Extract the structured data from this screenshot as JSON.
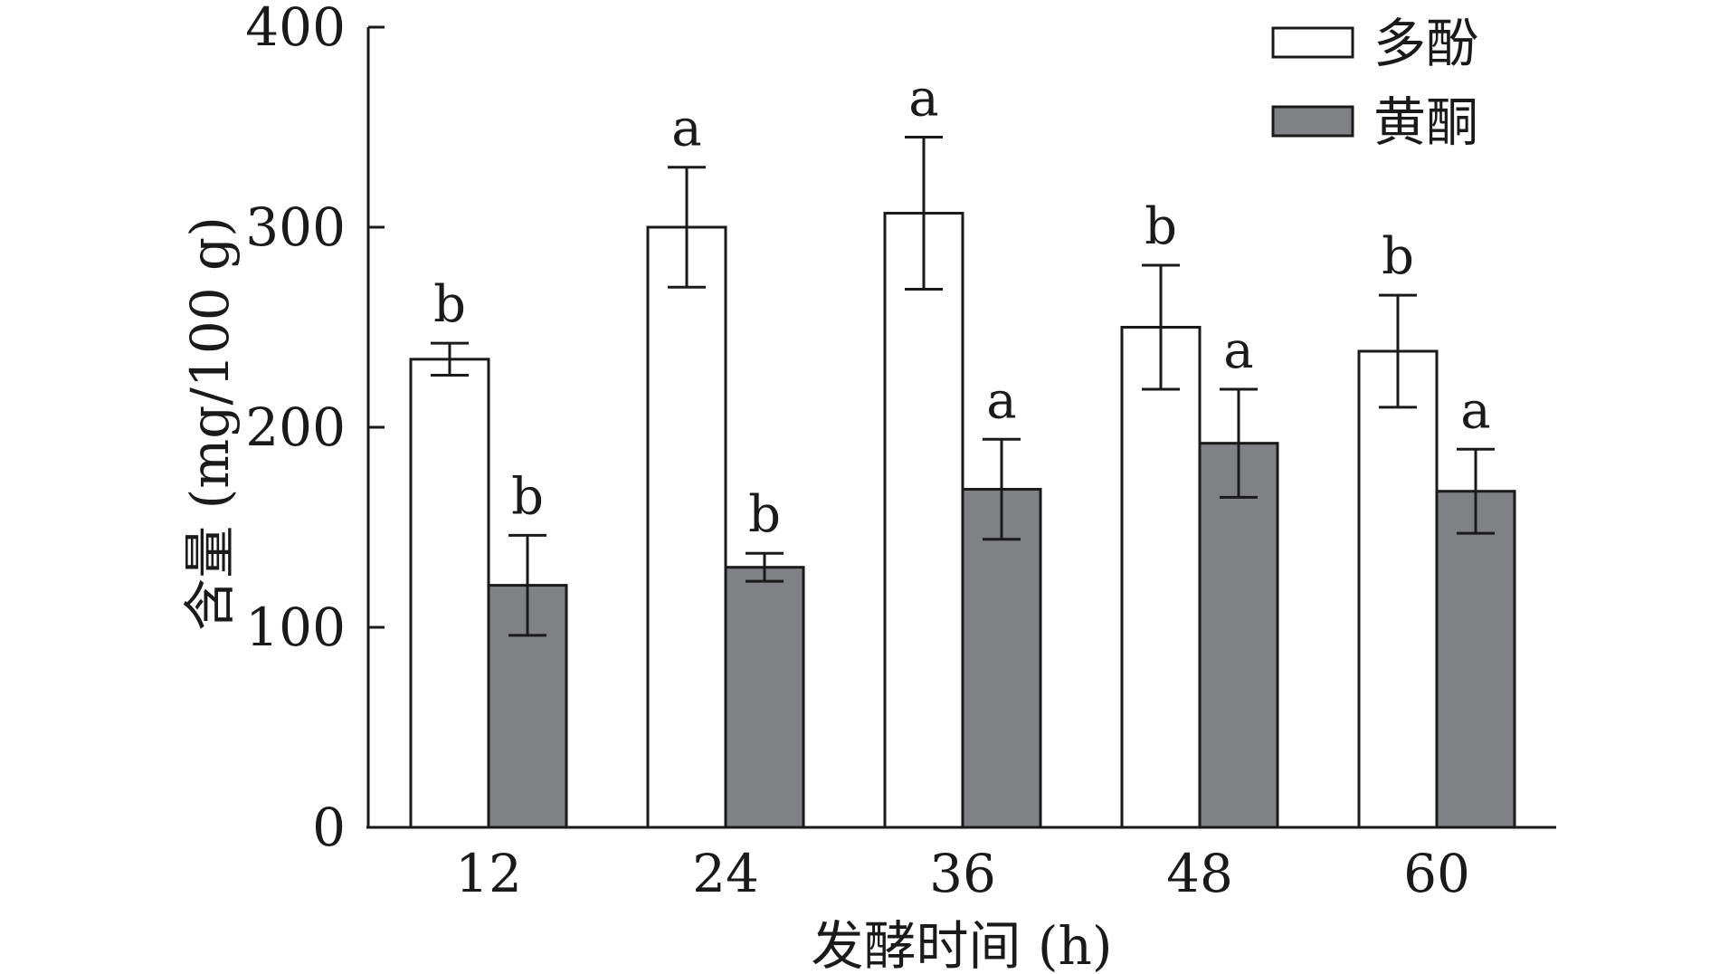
{
  "chart_data": {
    "type": "bar",
    "xlabel": "发酵时间 (h)",
    "ylabel": "含量 (mg/100 g)",
    "categories": [
      "12",
      "24",
      "36",
      "48",
      "60"
    ],
    "ylim": [
      0,
      400
    ],
    "yticks": [
      0,
      100,
      200,
      300,
      400
    ],
    "grid": false,
    "legend_position": "top-right",
    "series": [
      {
        "name": "多酚",
        "color": "#ffffff",
        "values": [
          234,
          300,
          307,
          250,
          238
        ],
        "error": [
          8,
          30,
          38,
          31,
          28
        ],
        "labels": [
          "b",
          "a",
          "a",
          "b",
          "b"
        ]
      },
      {
        "name": "黄酮",
        "color": "#808184",
        "values": [
          121,
          130,
          169,
          192,
          168
        ],
        "error": [
          25,
          7,
          25,
          27,
          21
        ],
        "labels": [
          "b",
          "b",
          "a",
          "a",
          "a"
        ]
      }
    ]
  }
}
